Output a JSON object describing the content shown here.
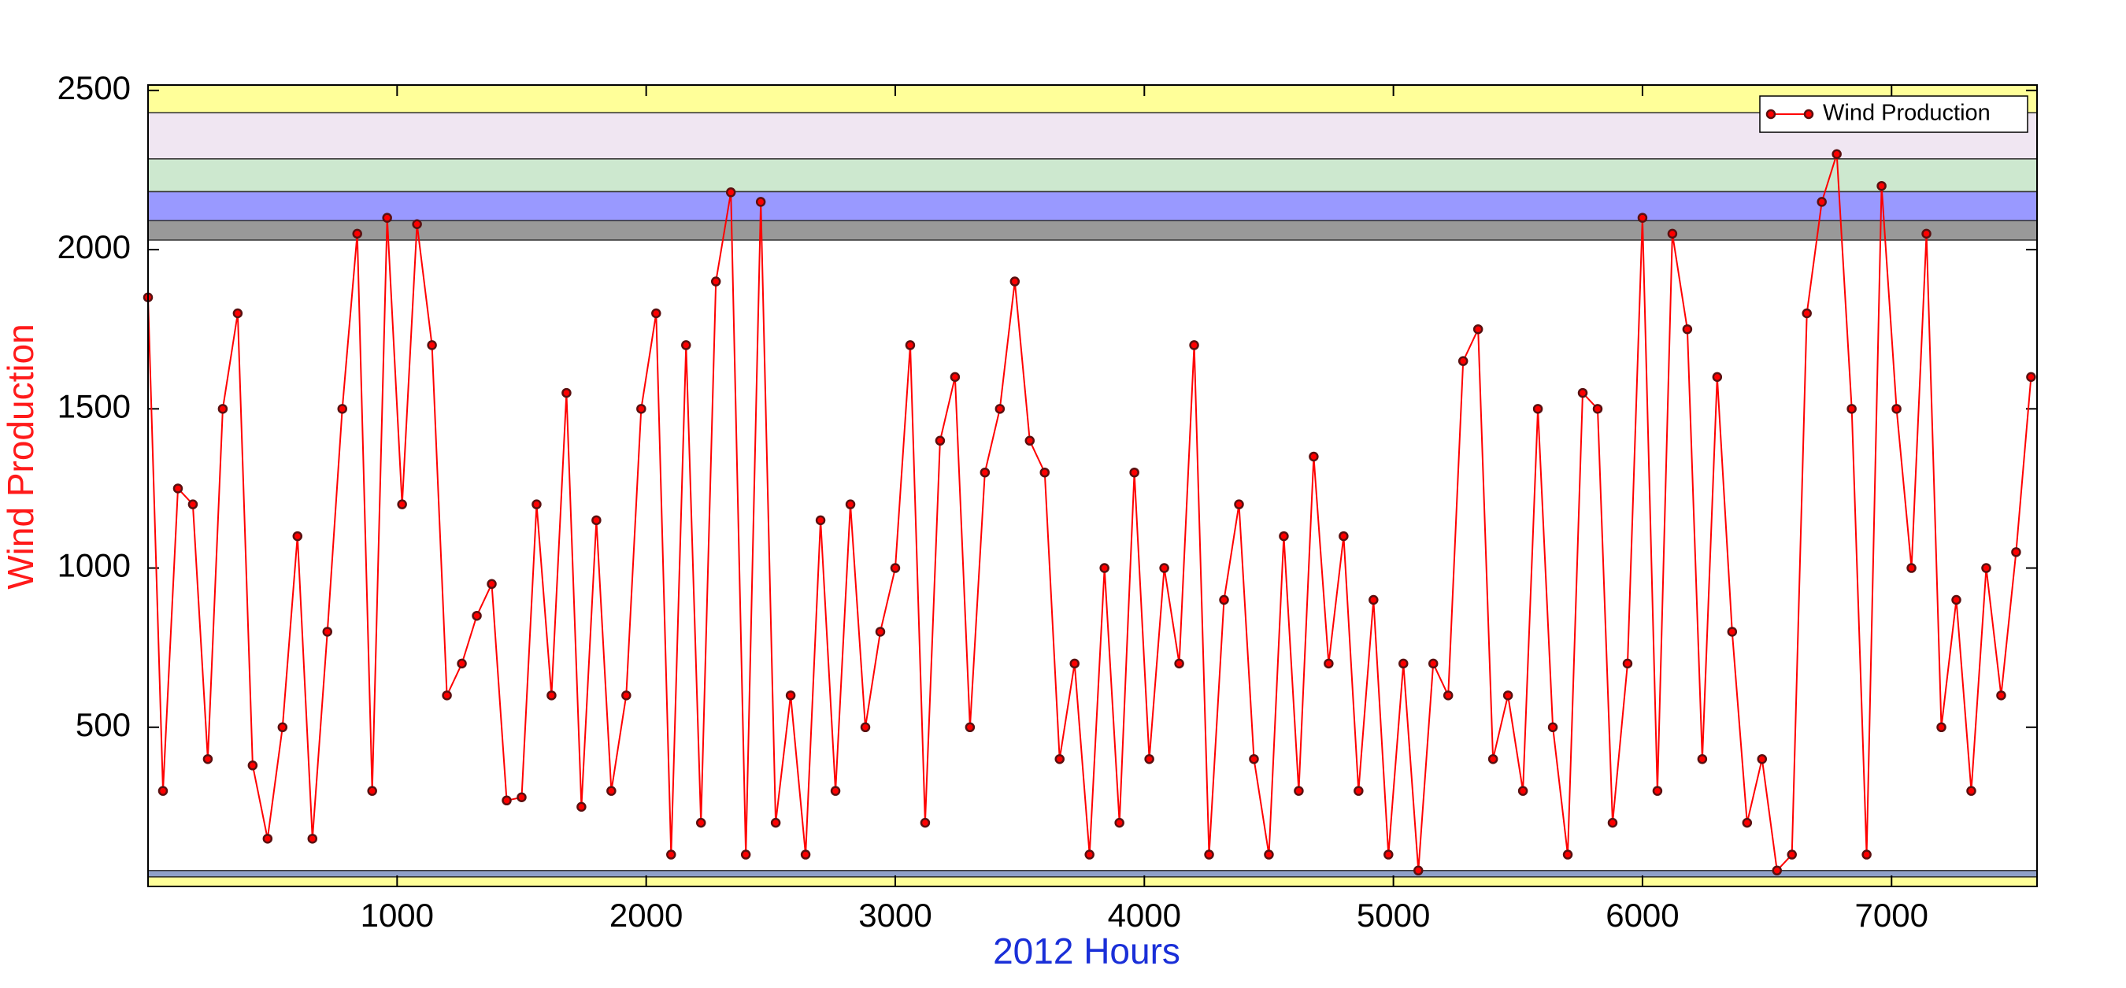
{
  "chart_data": {
    "type": "line",
    "xlabel": "2012 Hours",
    "ylabel": "Wind Production",
    "xlim": [
      0,
      7584
    ],
    "ylim": [
      0,
      2517
    ],
    "xticks": [
      1000,
      2000,
      3000,
      4000,
      5000,
      6000,
      7000
    ],
    "yticks": [
      500,
      1000,
      1500,
      2000,
      2500
    ],
    "legend": "upper right",
    "bands": [
      {
        "from": 2430,
        "to": 2517,
        "color": "#ffff99"
      },
      {
        "from": 2285,
        "to": 2430,
        "color": "#f0e6f2"
      },
      {
        "from": 2182,
        "to": 2285,
        "color": "#cde8cf"
      },
      {
        "from": 2091,
        "to": 2182,
        "color": "#9999ff"
      },
      {
        "from": 2030,
        "to": 2091,
        "color": "#999999"
      },
      {
        "from": 30,
        "to": 50,
        "color": "#8fa0c8"
      },
      {
        "from": 0,
        "to": 30,
        "color": "#ffff99"
      }
    ],
    "x": [
      0,
      60,
      120,
      180,
      240,
      300,
      360,
      420,
      480,
      540,
      600,
      660,
      720,
      780,
      840,
      900,
      960,
      1020,
      1080,
      1140,
      1200,
      1260,
      1320,
      1380,
      1440,
      1500,
      1560,
      1620,
      1680,
      1740,
      1800,
      1860,
      1920,
      1980,
      2040,
      2100,
      2160,
      2220,
      2280,
      2340,
      2400,
      2460,
      2520,
      2580,
      2640,
      2700,
      2760,
      2820,
      2880,
      2940,
      3000,
      3060,
      3120,
      3180,
      3240,
      3300,
      3360,
      3420,
      3480,
      3540,
      3600,
      3660,
      3720,
      3780,
      3840,
      3900,
      3960,
      4020,
      4080,
      4140,
      4200,
      4260,
      4320,
      4380,
      4440,
      4500,
      4560,
      4620,
      4680,
      4740,
      4800,
      4860,
      4920,
      4980,
      5040,
      5100,
      5160,
      5220,
      5280,
      5340,
      5400,
      5460,
      5520,
      5580,
      5640,
      5700,
      5760,
      5820,
      5880,
      5940,
      6000,
      6060,
      6120,
      6180,
      6240,
      6300,
      6360,
      6420,
      6480,
      6540,
      6600,
      6660,
      6720,
      6780,
      6840,
      6900,
      6960,
      7020,
      7080,
      7140,
      7200,
      7260,
      7320,
      7380,
      7440,
      7500,
      7560
    ],
    "series": [
      {
        "name": "Wind Production",
        "color": "#ff0000",
        "marker_color": "#5a1010",
        "values": [
          1850,
          300,
          1250,
          1200,
          400,
          1500,
          1800,
          380,
          150,
          500,
          1100,
          150,
          800,
          1500,
          2050,
          300,
          2100,
          1200,
          2080,
          1700,
          600,
          700,
          850,
          950,
          270,
          280,
          1200,
          600,
          1550,
          250,
          1150,
          300,
          600,
          1500,
          1800,
          100,
          1700,
          200,
          1900,
          2180,
          100,
          2150,
          200,
          600,
          100,
          1150,
          300,
          1200,
          500,
          800,
          1000,
          1700,
          200,
          1400,
          1600,
          500,
          1300,
          1500,
          1900,
          1400,
          1300,
          400,
          700,
          100,
          1000,
          200,
          1300,
          400,
          1000,
          700,
          1700,
          100,
          900,
          1200,
          400,
          100,
          1100,
          300,
          1350,
          700,
          1100,
          300,
          900,
          100,
          700,
          50,
          700,
          600,
          1650,
          1750,
          400,
          600,
          300,
          1500,
          500,
          100,
          1550,
          1500,
          200,
          700,
          2100,
          300,
          2050,
          1750,
          400,
          1600,
          800,
          200,
          400,
          50,
          100,
          1800,
          2150,
          2300,
          1500,
          100,
          2200,
          1500,
          1000,
          2050,
          500,
          900,
          300,
          1000,
          600,
          1050,
          1600
        ]
      }
    ]
  }
}
